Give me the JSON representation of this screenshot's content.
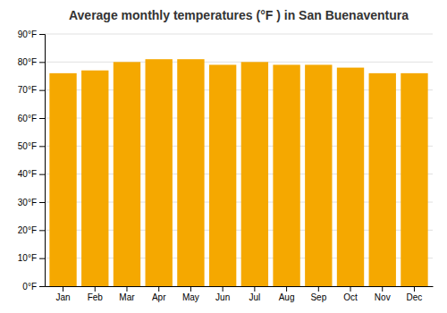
{
  "chart_data": {
    "type": "bar",
    "title": "Average monthly temperatures (°F ) in San Buenaventura",
    "categories": [
      "Jan",
      "Feb",
      "Mar",
      "Apr",
      "May",
      "Jun",
      "Jul",
      "Aug",
      "Sep",
      "Oct",
      "Nov",
      "Dec"
    ],
    "values": [
      76,
      77,
      80,
      81,
      81,
      79,
      80,
      79,
      79,
      78,
      76,
      76
    ],
    "color": "#F5A800",
    "ylim": [
      0,
      90
    ],
    "yticks": [
      {
        "value": 0,
        "label": "0°F"
      },
      {
        "value": 10,
        "label": "10°F"
      },
      {
        "value": 20,
        "label": "20°F"
      },
      {
        "value": 30,
        "label": "30°F"
      },
      {
        "value": 40,
        "label": "40°F"
      },
      {
        "value": 50,
        "label": "50°F"
      },
      {
        "value": 60,
        "label": "60°F"
      },
      {
        "value": 70,
        "label": "70°F"
      },
      {
        "value": 80,
        "label": "80°F"
      },
      {
        "value": 90,
        "label": "90°F"
      }
    ],
    "grid": true
  }
}
